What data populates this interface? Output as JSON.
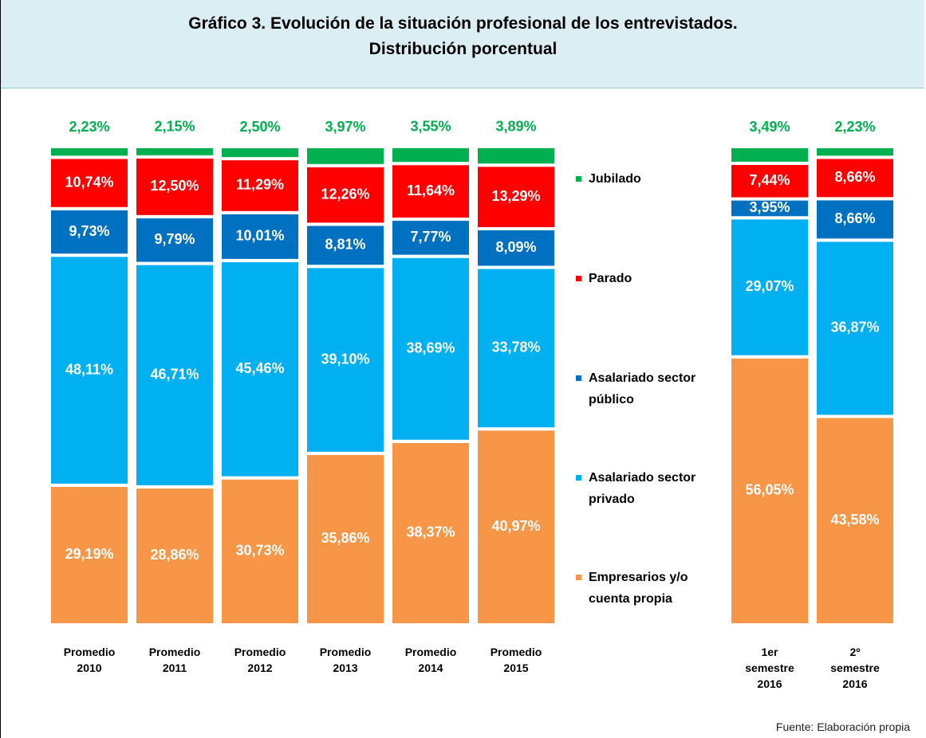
{
  "chart_data": {
    "type": "stacked_bar",
    "title": "Gráfico 3. Evolución de la situación profesional de los entrevistados.",
    "subtitle": "Distribución porcentual",
    "source": "Fuente: Elaboración propia",
    "categories": [
      "Promedio\n2010",
      "Promedio\n2011",
      "Promedio\n2012",
      "Promedio\n2013",
      "Promedio\n2014",
      "Promedio\n2015",
      "1er\nsemestre\n2016",
      "2º\nsemestre\n2016"
    ],
    "ylim": [
      0,
      100
    ],
    "series": [
      {
        "name": "Empresarios y/o cuenta propia",
        "color": "#f79646",
        "values": [
          29.19,
          28.86,
          30.73,
          35.86,
          38.37,
          40.97,
          56.05,
          43.58
        ],
        "value_labels": [
          "29,19%",
          "28,86%",
          "30,73%",
          "35,86%",
          "38,37%",
          "40,97%",
          "56,05%",
          "43,58%"
        ]
      },
      {
        "name": "Asalariado sector privado",
        "color": "#00b0f0",
        "values": [
          48.11,
          46.71,
          45.46,
          39.1,
          38.69,
          33.78,
          29.07,
          36.87
        ],
        "value_labels": [
          "48,11%",
          "46,71%",
          "45,46%",
          "39,10%",
          "38,69%",
          "33,78%",
          "29,07%",
          "36,87%"
        ]
      },
      {
        "name": "Asalariado sector público",
        "color": "#0070c0",
        "values": [
          9.73,
          9.79,
          10.01,
          8.81,
          7.77,
          8.09,
          3.95,
          8.66
        ],
        "value_labels": [
          "9,73%",
          "9,79%",
          "10,01%",
          "8,81%",
          "7,77%",
          "8,09%",
          "3,95%",
          "8,66%"
        ]
      },
      {
        "name": "Parado",
        "color": "#ff0000",
        "values": [
          10.74,
          12.5,
          11.29,
          12.26,
          11.64,
          13.29,
          7.44,
          8.66
        ],
        "value_labels": [
          "10,74%",
          "12,50%",
          "11,29%",
          "12,26%",
          "11,64%",
          "13,29%",
          "7,44%",
          "8,66%"
        ]
      },
      {
        "name": "Jubilado",
        "color": "#00b050",
        "values": [
          2.23,
          2.15,
          2.5,
          3.97,
          3.55,
          3.89,
          3.49,
          2.23
        ],
        "value_labels": [
          "2,23%",
          "2,15%",
          "2,50%",
          "3,97%",
          "3,55%",
          "3,89%",
          "3,49%",
          "2,23%"
        ]
      }
    ]
  }
}
